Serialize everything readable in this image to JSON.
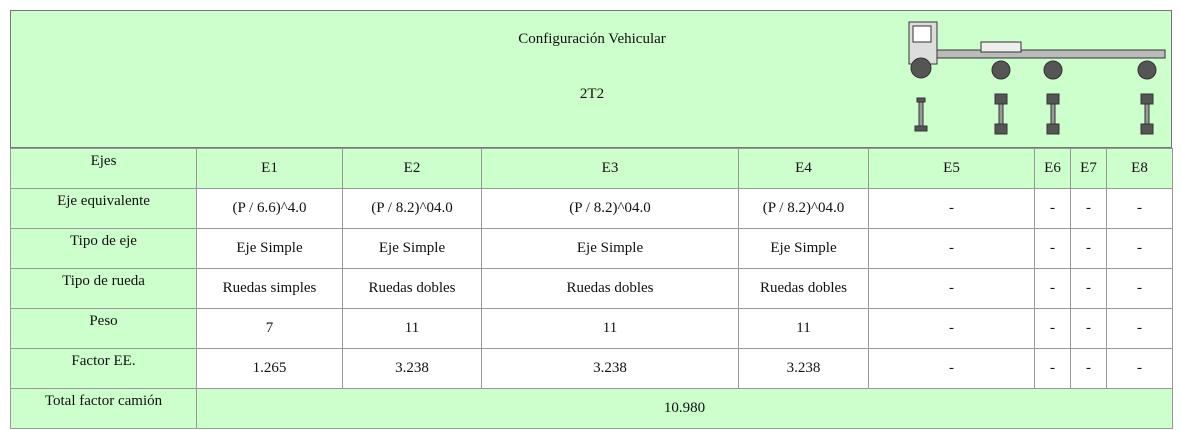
{
  "header": {
    "title": "Configuración Vehicular",
    "code": "2T2"
  },
  "table": {
    "columns": [
      "Ejes",
      "E1",
      "E2",
      "E3",
      "E4",
      "E5",
      "E6",
      "E7",
      "E8"
    ],
    "rows": [
      [
        "Eje equivalente",
        "(P / 6.6)^4.0",
        "(P / 8.2)^04.0",
        "(P / 8.2)^04.0",
        "(P / 8.2)^04.0",
        "-",
        "-",
        "-",
        "-"
      ],
      [
        "Tipo de eje",
        "Eje Simple",
        "Eje Simple",
        "Eje Simple",
        "Eje Simple",
        "-",
        "-",
        "-",
        "-"
      ],
      [
        "Tipo de rueda",
        "Ruedas simples",
        "Ruedas dobles",
        "Ruedas dobles",
        "Ruedas dobles",
        "-",
        "-",
        "-",
        "-"
      ],
      [
        "Peso",
        "7",
        "11",
        "11",
        "11",
        "-",
        "-",
        "-",
        "-"
      ],
      [
        "Factor EE.",
        "1.265",
        "3.238",
        "3.238",
        "3.238",
        "-",
        "-",
        "-",
        "-"
      ]
    ]
  },
  "total": {
    "label": "Total factor camión",
    "value": "10.980"
  }
}
